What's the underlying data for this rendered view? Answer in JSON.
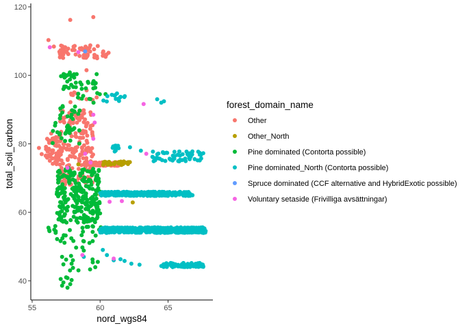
{
  "chart_data": {
    "type": "scatter",
    "xlabel": "nord_wgs84",
    "ylabel": "total_soil_carbon",
    "xlim": [
      54.9,
      68.3
    ],
    "ylim": [
      34.4,
      121
    ],
    "x_ticks": [
      55,
      60,
      65
    ],
    "y_ticks": [
      40,
      60,
      80,
      100,
      120
    ],
    "grid": false,
    "legend_title": "forest_domain_name",
    "legend_position": "right",
    "series": [
      {
        "name": "Other",
        "color": "#F8766D",
        "clusters": [
          {
            "x": [
              56.0,
              57.2
            ],
            "y": [
              74,
              82
            ],
            "n": 60
          },
          {
            "x": [
              57.0,
              59.5
            ],
            "y": [
              68,
              90
            ],
            "n": 170
          },
          {
            "x": [
              58.8,
              61.5
            ],
            "y": [
              73.6,
              74.6
            ],
            "n": 120
          },
          {
            "x": [
              57.0,
              60.8
            ],
            "y": [
              105,
              109
            ],
            "n": 60
          },
          {
            "x": [
              57.4,
              59.8
            ],
            "y": [
              92,
              96
            ],
            "n": 10
          }
        ],
        "points": [
          [
            56.2,
            110.3
          ],
          [
            57.8,
            116.2
          ],
          [
            59.5,
            117.0
          ],
          [
            56.6,
            108.4
          ],
          [
            55.5,
            78.8
          ],
          [
            55.7,
            77.0
          ],
          [
            56.0,
            76.5
          ],
          [
            56.4,
            83.0
          ],
          [
            59.0,
            93.0
          ],
          [
            59.0,
            101.5
          ]
        ]
      },
      {
        "name": "Other_North",
        "color": "#B79F00",
        "clusters": [
          {
            "x": [
              60.2,
              62.2
            ],
            "y": [
              73.8,
              74.9
            ],
            "n": 30
          }
        ],
        "points": [
          [
            62.4,
            62.9
          ],
          [
            60.0,
            65.2
          ],
          [
            61.5,
            65.5
          ],
          [
            58.4,
            74.0
          ]
        ]
      },
      {
        "name": "Pine dominated (Contorta possible)",
        "color": "#00BA38",
        "clusters": [
          {
            "x": [
              56.8,
              60.0
            ],
            "y": [
              57,
              73
            ],
            "n": 260
          },
          {
            "x": [
              56.5,
              58.5
            ],
            "y": [
              80,
              92
            ],
            "n": 40
          },
          {
            "x": [
              57.0,
              59.8
            ],
            "y": [
              96,
              101
            ],
            "n": 40
          },
          {
            "x": [
              56.0,
              60.2
            ],
            "y": [
              51,
              56
            ],
            "n": 30
          },
          {
            "x": [
              57.5,
              60.2
            ],
            "y": [
              43,
              50
            ],
            "n": 12
          },
          {
            "x": [
              58.3,
              60.6
            ],
            "y": [
              92,
              95
            ],
            "n": 10
          }
        ],
        "points": [
          [
            57.3,
            39.5
          ],
          [
            57.6,
            38.0
          ],
          [
            57.9,
            40.2
          ],
          [
            57.1,
            40.5
          ],
          [
            57.5,
            41.0
          ],
          [
            57.8,
            39.0
          ],
          [
            57.2,
            38.6
          ],
          [
            57.6,
            40.8
          ],
          [
            56.2,
            55.5
          ],
          [
            57.2,
            47.0
          ],
          [
            57.5,
            46.2
          ],
          [
            57.9,
            45.0
          ],
          [
            58.0,
            46.0
          ],
          [
            57.3,
            44.8
          ]
        ]
      },
      {
        "name": "Pine dominated_North (Contorta possible)",
        "color": "#00BFC4",
        "clusters": [
          {
            "x": [
              60.0,
              67.8
            ],
            "y": [
              54.0,
              55.6
            ],
            "n": 520
          },
          {
            "x": [
              60.0,
              66.8
            ],
            "y": [
              64.8,
              66.0
            ],
            "n": 300
          },
          {
            "x": [
              63.5,
              67.6
            ],
            "y": [
              74.8,
              77.8
            ],
            "n": 55
          },
          {
            "x": [
              64.5,
              67.6
            ],
            "y": [
              44.0,
              45.2
            ],
            "n": 90
          },
          {
            "x": [
              60.2,
              62.0
            ],
            "y": [
              91.5,
              95.2
            ],
            "n": 14
          },
          {
            "x": [
              60.9,
              61.4
            ],
            "y": [
              77.5,
              79.5
            ],
            "n": 10
          }
        ],
        "points": [
          [
            62.3,
            45.0
          ],
          [
            62.9,
            44.7
          ],
          [
            61.8,
            45.8
          ],
          [
            61.5,
            46.3
          ],
          [
            64.2,
            93.0
          ],
          [
            64.5,
            92.0
          ],
          [
            64.7,
            92.4
          ],
          [
            62.2,
            79.0
          ],
          [
            63.0,
            78.0
          ],
          [
            60.2,
            49.0
          ],
          [
            60.5,
            47.5
          ],
          [
            58.8,
            47.0
          ],
          [
            61.0,
            46.0
          ]
        ]
      },
      {
        "name": "Spruce dominated (CCF alternative and HybridExotic possible)",
        "color": "#619CFF",
        "clusters": [],
        "points": [
          [
            58.9,
            107.0
          ]
        ]
      },
      {
        "name": "Voluntary setaside (Frivilliga avsättningar)",
        "color": "#F564E3",
        "clusters": [],
        "points": [
          [
            63.2,
            91.6
          ],
          [
            59.5,
            88.5
          ],
          [
            59.6,
            86.2
          ],
          [
            58.9,
            77.1
          ],
          [
            61.6,
            63.3
          ],
          [
            60.7,
            63.1
          ],
          [
            58.7,
            47.5
          ],
          [
            63.4,
            77.1
          ],
          [
            59.5,
            81.5
          ],
          [
            61.0,
            46.5
          ],
          [
            57.6,
            73.0
          ],
          [
            59.3,
            74.5
          ],
          [
            56.3,
            108.2
          ],
          [
            58.4,
            106.8
          ]
        ]
      }
    ]
  }
}
